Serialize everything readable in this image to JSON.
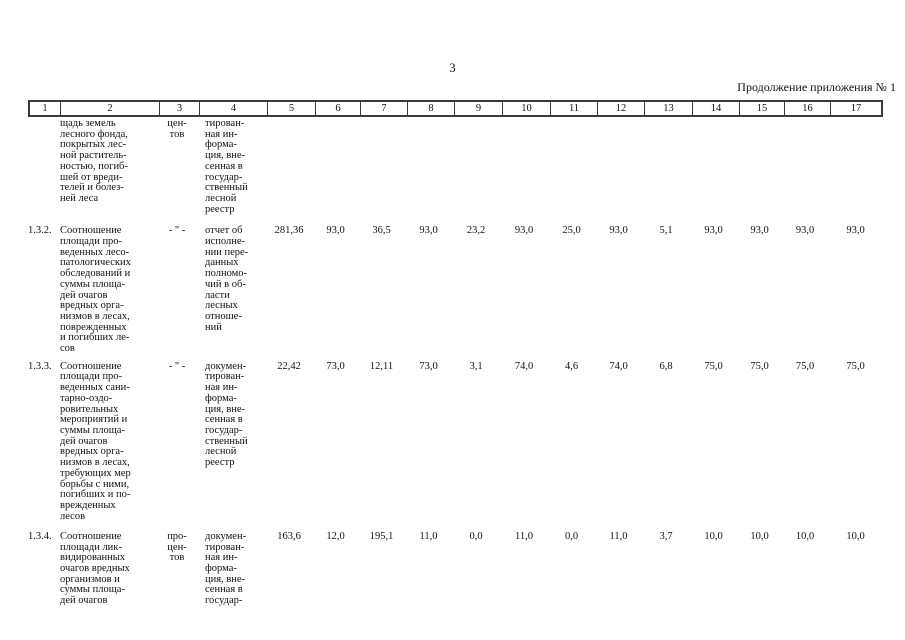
{
  "page": {
    "number": "3",
    "continuation": "Продолжение приложения № 1"
  },
  "table": {
    "column_numbers": [
      "1",
      "2",
      "3",
      "4",
      "5",
      "6",
      "7",
      "8",
      "9",
      "10",
      "11",
      "12",
      "13",
      "14",
      "15",
      "16",
      "17"
    ],
    "rows": [
      {
        "num": "",
        "indicator_lines": [
          "щадь земель",
          "лесного фонда,",
          "покрытых лес-",
          "ной раститель-",
          "ностью, погиб-",
          "шей от вреди-",
          "телей и болез-",
          "ней леса"
        ],
        "unit_lines": [
          "цен-",
          "тов"
        ],
        "source_lines": [
          "тирован-",
          "ная ин-",
          "форма-",
          "ция, вне-",
          "сенная в",
          "государ-",
          "ственный",
          "лесной",
          "реестр"
        ],
        "values": []
      },
      {
        "num": "1.3.2.",
        "indicator_lines": [
          "Соотношение",
          "площади про-",
          "веденных лесо-",
          "патологических",
          "обследований и",
          "суммы площа-",
          "дей очагов",
          "вредных орга-",
          "низмов в лесах,",
          "поврежденных",
          "и погибших ле-",
          "сов"
        ],
        "unit_lines": [
          "- \" -"
        ],
        "source_lines": [
          "отчет об",
          "исполне-",
          "нии пере-",
          "данных",
          "полномо-",
          "чий в об-",
          "ласти",
          "лесных",
          "отноше-",
          "ний"
        ],
        "values": [
          "281,36",
          "93,0",
          "36,5",
          "93,0",
          "23,2",
          "93,0",
          "25,0",
          "93,0",
          "5,1",
          "93,0",
          "93,0",
          "93,0",
          "93,0"
        ]
      },
      {
        "num": "1.3.3.",
        "indicator_lines": [
          "Соотношение",
          "площади про-",
          "веденных сани-",
          "тарно-оздо-",
          "ровительных",
          "мероприятий и",
          "суммы площа-",
          "дей очагов",
          "вредных орга-",
          "низмов в лесах,",
          "требующих мер",
          "борьбы с ними,",
          "погибших и по-",
          "врежденных",
          "лесов"
        ],
        "unit_lines": [
          "- \" -"
        ],
        "source_lines": [
          "докумен-",
          "тирован-",
          "ная ин-",
          "форма-",
          "ция, вне-",
          "сенная в",
          "государ-",
          "ственный",
          "лесной",
          "реестр"
        ],
        "values": [
          "22,42",
          "73,0",
          "12,11",
          "73,0",
          "3,1",
          "74,0",
          "4,6",
          "74,0",
          "6,8",
          "75,0",
          "75,0",
          "75,0",
          "75,0"
        ]
      },
      {
        "num": "1.3.4.",
        "indicator_lines": [
          "Соотношение",
          "площади лик-",
          "видированных",
          "очагов вредных",
          "организмов и",
          "суммы площа-",
          "дей очагов"
        ],
        "unit_lines": [
          "про-",
          "цен-",
          "тов"
        ],
        "source_lines": [
          "докумен-",
          "тирован-",
          "ная ин-",
          "форма-",
          "ция, вне-",
          "сенная в",
          "государ-"
        ],
        "values": [
          "163,6",
          "12,0",
          "195,1",
          "11,0",
          "0,0",
          "11,0",
          "0,0",
          "11,0",
          "3,7",
          "10,0",
          "10,0",
          "10,0",
          "10,0"
        ]
      }
    ]
  }
}
